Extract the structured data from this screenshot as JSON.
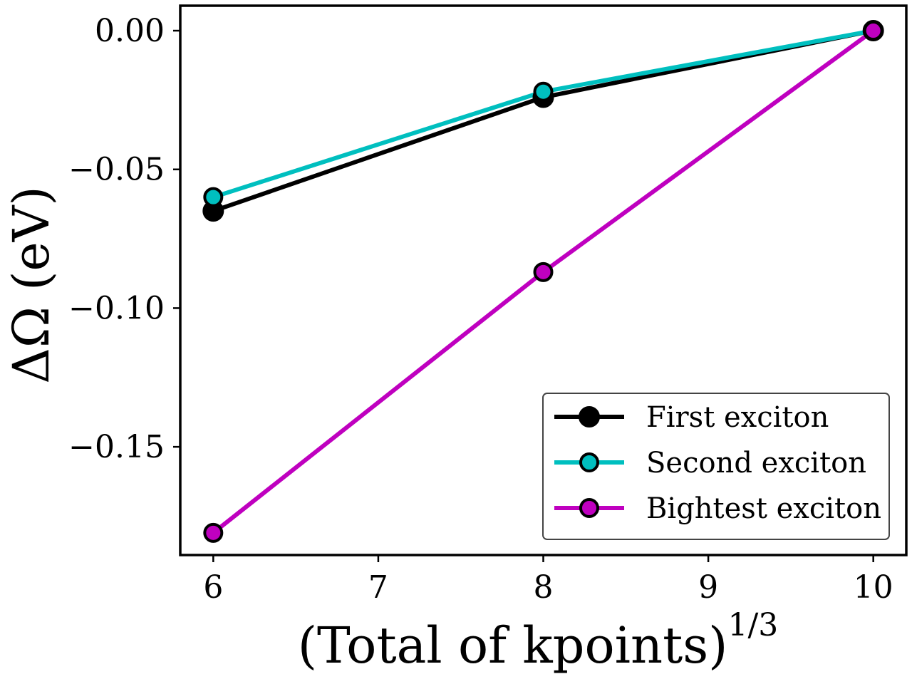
{
  "chart_data": {
    "type": "line",
    "title": "",
    "xlabel": "(Total of kpoints)",
    "xlabel_superscript": "1/3",
    "ylabel": "ΔΩ (eV)",
    "xlim": [
      5.8,
      10.2
    ],
    "ylim": [
      -0.189,
      0.009
    ],
    "xticks": [
      6,
      7,
      8,
      9,
      10
    ],
    "xtick_labels": [
      "6",
      "7",
      "8",
      "9",
      "10"
    ],
    "yticks": [
      0.0,
      -0.05,
      -0.1,
      -0.15
    ],
    "ytick_labels": [
      "0.00",
      "−0.05",
      "−0.10",
      "−0.15"
    ],
    "grid": false,
    "legend_position": "lower-right",
    "x": [
      6,
      8,
      10
    ],
    "series": [
      {
        "name": "First exciton",
        "values": [
          -0.065,
          -0.024,
          0.0
        ],
        "color": "#000000"
      },
      {
        "name": "Second exciton",
        "values": [
          -0.06,
          -0.022,
          0.0
        ],
        "color": "#00bfbf"
      },
      {
        "name": "Bightest exciton",
        "values": [
          -0.181,
          -0.087,
          0.0
        ],
        "color": "#bf00bf"
      }
    ]
  }
}
